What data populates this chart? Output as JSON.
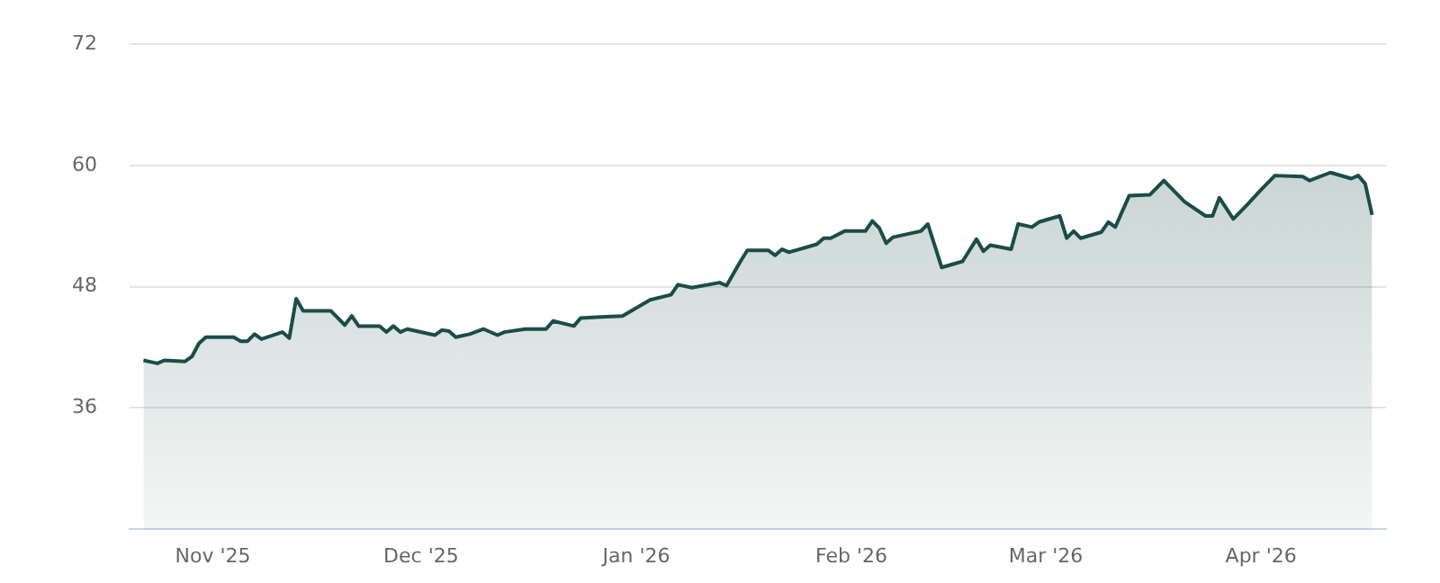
{
  "chart_data": {
    "type": "area",
    "color": "#1b4d47",
    "x": [
      "2025-10-22",
      "2025-10-24",
      "2025-10-25",
      "2025-10-28",
      "2025-10-29",
      "2025-10-30",
      "2025-10-31",
      "2025-11-04",
      "2025-11-05",
      "2025-11-06",
      "2025-11-07",
      "2025-11-08",
      "2025-11-11",
      "2025-11-12",
      "2025-11-13",
      "2025-11-14",
      "2025-11-18",
      "2025-11-20",
      "2025-11-21",
      "2025-11-22",
      "2025-11-25",
      "2025-11-26",
      "2025-11-27",
      "2025-11-28",
      "2025-11-29",
      "2025-12-03",
      "2025-12-04",
      "2025-12-05",
      "2025-12-06",
      "2025-12-08",
      "2025-12-10",
      "2025-12-12",
      "2025-12-13",
      "2025-12-16",
      "2025-12-19",
      "2025-12-20",
      "2025-12-23",
      "2025-12-24",
      "2025-12-27",
      "2025-12-30",
      "2026-01-03",
      "2026-01-06",
      "2026-01-07",
      "2026-01-09",
      "2026-01-13",
      "2026-01-14",
      "2026-01-16",
      "2026-01-17",
      "2026-01-20",
      "2026-01-21",
      "2026-01-22",
      "2026-01-23",
      "2026-01-27",
      "2026-01-28",
      "2026-01-29",
      "2026-01-31",
      "2026-02-03",
      "2026-02-04",
      "2026-02-05",
      "2026-02-06",
      "2026-02-07",
      "2026-02-11",
      "2026-02-12",
      "2026-02-14",
      "2026-02-17",
      "2026-02-19",
      "2026-02-20",
      "2026-02-21",
      "2026-02-24",
      "2026-02-25",
      "2026-02-27",
      "2026-02-28",
      "2026-03-03",
      "2026-03-04",
      "2026-03-05",
      "2026-03-06",
      "2026-03-09",
      "2026-03-10",
      "2026-03-11",
      "2026-03-13",
      "2026-03-16",
      "2026-03-18",
      "2026-03-19",
      "2026-03-21",
      "2026-03-24",
      "2026-03-25",
      "2026-03-26",
      "2026-03-28",
      "2026-03-30",
      "2026-04-01",
      "2026-04-03",
      "2026-04-07",
      "2026-04-08",
      "2026-04-11",
      "2026-04-14",
      "2026-04-15",
      "2026-04-16",
      "2026-04-17"
    ],
    "values": [
      40.7,
      40.4,
      40.7,
      40.6,
      41.1,
      42.4,
      43.0,
      43.0,
      42.6,
      42.6,
      43.3,
      42.8,
      43.5,
      42.9,
      46.8,
      45.6,
      45.6,
      44.2,
      45.1,
      44.1,
      44.1,
      43.5,
      44.1,
      43.5,
      43.8,
      43.2,
      43.7,
      43.6,
      43.0,
      43.3,
      43.8,
      43.2,
      43.5,
      43.8,
      43.8,
      44.6,
      44.1,
      44.9,
      45.0,
      45.1,
      46.7,
      47.2,
      48.2,
      47.9,
      48.4,
      48.1,
      50.5,
      51.6,
      51.6,
      51.1,
      51.7,
      51.4,
      52.2,
      52.8,
      52.8,
      53.5,
      53.5,
      54.5,
      53.8,
      52.3,
      52.9,
      53.5,
      54.2,
      49.9,
      50.5,
      52.7,
      51.5,
      52.1,
      51.7,
      54.2,
      53.9,
      54.4,
      55.0,
      52.8,
      53.5,
      52.8,
      53.4,
      54.4,
      53.9,
      57.0,
      57.1,
      58.5,
      57.8,
      56.4,
      55.0,
      55.0,
      56.8,
      54.7,
      56.1,
      57.6,
      59.0,
      58.9,
      58.5,
      59.3,
      58.7,
      59.0,
      58.2,
      55.1
    ],
    "xlim": [
      "2025-10-20",
      "2026-04-19"
    ],
    "xticks": [
      {
        "value": "2025-11-01",
        "label": "Nov '25"
      },
      {
        "value": "2025-12-01",
        "label": "Dec '25"
      },
      {
        "value": "2026-01-01",
        "label": "Jan '26"
      },
      {
        "value": "2026-02-01",
        "label": "Feb '26"
      },
      {
        "value": "2026-03-01",
        "label": "Mar '26"
      },
      {
        "value": "2026-04-01",
        "label": "Apr '26"
      }
    ],
    "ylim": [
      24,
      72
    ],
    "yticks": [
      36,
      48,
      60,
      72
    ],
    "grid": "y",
    "legend": false,
    "marker": "none",
    "line_style": "solid"
  }
}
